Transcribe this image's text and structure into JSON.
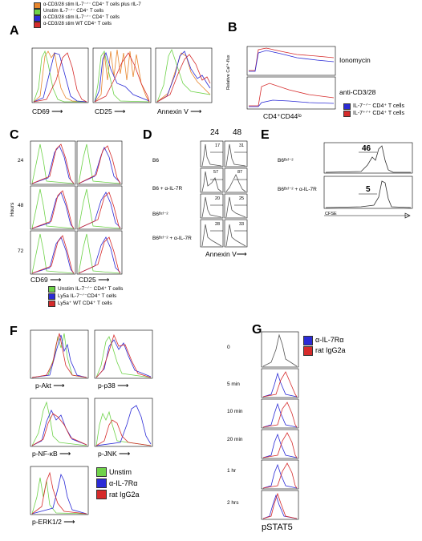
{
  "colors": {
    "orange": "#e8862d",
    "green": "#6fd34a",
    "blue": "#2b2bd6",
    "red": "#d62b2b",
    "gray": "#555555"
  },
  "panelA": {
    "letter": "A",
    "legend": [
      {
        "label": "α-CD3/28 stim IL-7⁻ᐟ⁻ CD4⁺ T cells plus rIL-7",
        "color": "orange"
      },
      {
        "label": "Unstim IL-7⁻ᐟ⁻ CD4⁺ T cells",
        "color": "green"
      },
      {
        "label": "α-CD3/28 stim IL-7⁻ᐟ⁻ CD4⁺ T cells",
        "color": "blue"
      },
      {
        "label": "α-CD3/28 stim WT CD4⁺ T cells",
        "color": "red"
      }
    ],
    "xlabels": [
      "CD69",
      "CD25",
      "Annexin V"
    ],
    "arrow": "⟶"
  },
  "panelB": {
    "letter": "B",
    "ylabel": "Relative Ca²⁺-flux",
    "xlabel": "CD4⁺CD44ˡᵒ",
    "top_label": "Ionomycin",
    "bottom_label": "anti-CD3/28",
    "legend": [
      {
        "label": "IL-7⁻ᐟ⁻ CD4⁺ T cells",
        "color": "blue"
      },
      {
        "label": "IL-7⁺ᐟ⁺ CD4⁺ T cells",
        "color": "red"
      }
    ]
  },
  "panelC": {
    "letter": "C",
    "ylabel": "Hours",
    "rows": [
      "24",
      "48",
      "72"
    ],
    "xlabels": [
      "CD69",
      "CD25"
    ],
    "legend": [
      {
        "label": "Unstim IL-7⁻ᐟ⁻ CD4⁺ T cells",
        "color": "green"
      },
      {
        "label": "Ly5a IL-7⁻ᐟ⁻CD4⁺ T cells",
        "color": "blue"
      },
      {
        "label": "Ly5a⁺ WT CD4⁺ T cells",
        "color": "red"
      }
    ]
  },
  "panelD": {
    "letter": "D",
    "cols": [
      "24",
      "48"
    ],
    "rows": [
      "B6",
      "B6 + α-IL-7R",
      "B6ᴮᶜˡ⁻²",
      "B6ᴮᶜˡ⁻² + α-IL-7R"
    ],
    "values": [
      [
        "17",
        "31"
      ],
      [
        "57",
        "87"
      ],
      [
        "20",
        "25"
      ],
      [
        "28",
        "33"
      ]
    ],
    "xlabel": "Annexin V"
  },
  "panelE": {
    "letter": "E",
    "rows": [
      "B6ᴮᶜˡ⁻²",
      "B6ᴮᶜˡ⁻² + α-IL-7R"
    ],
    "values": [
      "46",
      "5"
    ],
    "xlabel": "CFSE"
  },
  "panelF": {
    "letter": "F",
    "plots": [
      "p-Akt",
      "p-p38",
      "p-NF-κB",
      "p-JNK",
      "p-ERK1/2"
    ],
    "legend": [
      {
        "label": "Unstim",
        "color": "green"
      },
      {
        "label": "α-IL-7Rα",
        "color": "blue"
      },
      {
        "label": "rat IgG2a",
        "color": "red"
      }
    ]
  },
  "panelG": {
    "letter": "G",
    "times": [
      "0",
      "5 min",
      "10 min",
      "20 min",
      "1 hr",
      "2 hrs"
    ],
    "xlabel": "pSTAT5",
    "legend": [
      {
        "label": "α-IL-7Rα",
        "color": "blue"
      },
      {
        "label": "rat IgG2a",
        "color": "red"
      }
    ]
  }
}
